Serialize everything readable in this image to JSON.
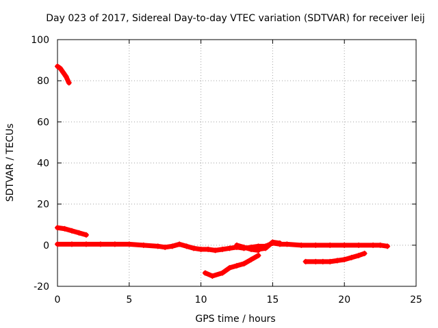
{
  "chart_data": {
    "type": "scatter",
    "title": "Day 023 of 2017, Sidereal Day-to-day VTEC variation (SDTVAR) for receiver leij",
    "xlabel": "GPS time / hours",
    "ylabel": "SDTVAR / TECUs",
    "xlim": [
      0,
      25
    ],
    "ylim": [
      -20,
      100
    ],
    "x_ticks": [
      0,
      5,
      10,
      15,
      20,
      25
    ],
    "y_ticks": [
      -20,
      0,
      20,
      40,
      60,
      80,
      100
    ],
    "grid": true,
    "grid_style": "dotted",
    "legend": "none",
    "marker": "plus",
    "series_color": "#ff0000",
    "segments": [
      {
        "x": [
          0.0,
          0.2,
          0.4,
          0.6,
          0.8
        ],
        "y": [
          87,
          86,
          84,
          82,
          79
        ]
      },
      {
        "x": [
          0.0,
          0.5,
          1.0,
          1.5,
          2.0
        ],
        "y": [
          8.5,
          8,
          7,
          6,
          5
        ]
      },
      {
        "x": [
          0.0,
          1,
          2,
          3,
          4,
          5,
          6,
          7,
          7.5,
          8,
          8.5,
          9,
          9.5,
          10,
          10.5,
          11,
          11.5,
          12,
          12.5,
          13,
          13.5,
          14,
          14.5,
          15,
          15.5,
          16,
          17,
          18,
          19,
          20,
          21,
          22,
          22.5,
          23
        ],
        "y": [
          0.5,
          0.5,
          0.5,
          0.5,
          0.5,
          0.5,
          0,
          -0.5,
          -1,
          -0.5,
          0.5,
          -0.5,
          -1.5,
          -2,
          -2,
          -2.5,
          -2,
          -1.5,
          -1,
          -1.5,
          -1,
          -0.5,
          -0.5,
          1,
          0.5,
          0.5,
          0,
          0,
          0,
          0,
          0,
          0,
          0,
          -0.5
        ]
      },
      {
        "x": [
          12.5,
          13.0,
          13.5,
          14.0
        ],
        "y": [
          0,
          -1,
          -2,
          -2.5
        ]
      },
      {
        "x": [
          14.0,
          14.5,
          15.0,
          15.5
        ],
        "y": [
          -2,
          -1.5,
          1.5,
          1
        ]
      },
      {
        "x": [
          10.3,
          10.8,
          11.5,
          12.0,
          12.5,
          13.0,
          13.5,
          14.0
        ],
        "y": [
          -13.5,
          -15,
          -13.5,
          -11,
          -10,
          -9,
          -7,
          -5
        ]
      },
      {
        "x": [
          17.3,
          18.0,
          18.5,
          19.0,
          19.5,
          20.0,
          20.5,
          21.0,
          21.4
        ],
        "y": [
          -8,
          -8,
          -8,
          -8,
          -7.5,
          -7,
          -6,
          -5,
          -4
        ]
      }
    ]
  }
}
